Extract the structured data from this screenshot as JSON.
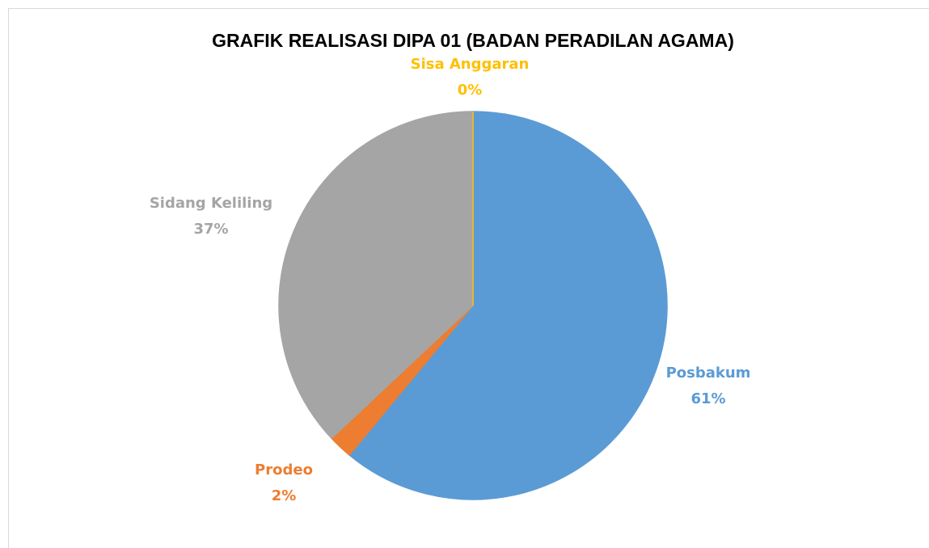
{
  "chart_data": {
    "type": "pie",
    "title": "GRAFIK REALISASI DIPA 01 (BADAN PERADILAN AGAMA)",
    "categories": [
      "Posbakum",
      "Prodeo",
      "Sidang Keliling",
      "Sisa Anggaran"
    ],
    "values": [
      61,
      2,
      37,
      0
    ],
    "value_labels": [
      "61%",
      "2%",
      "37%",
      "0%"
    ],
    "colors": [
      "#5b9bd5",
      "#ed7d31",
      "#a5a5a5",
      "#ffc000"
    ]
  }
}
